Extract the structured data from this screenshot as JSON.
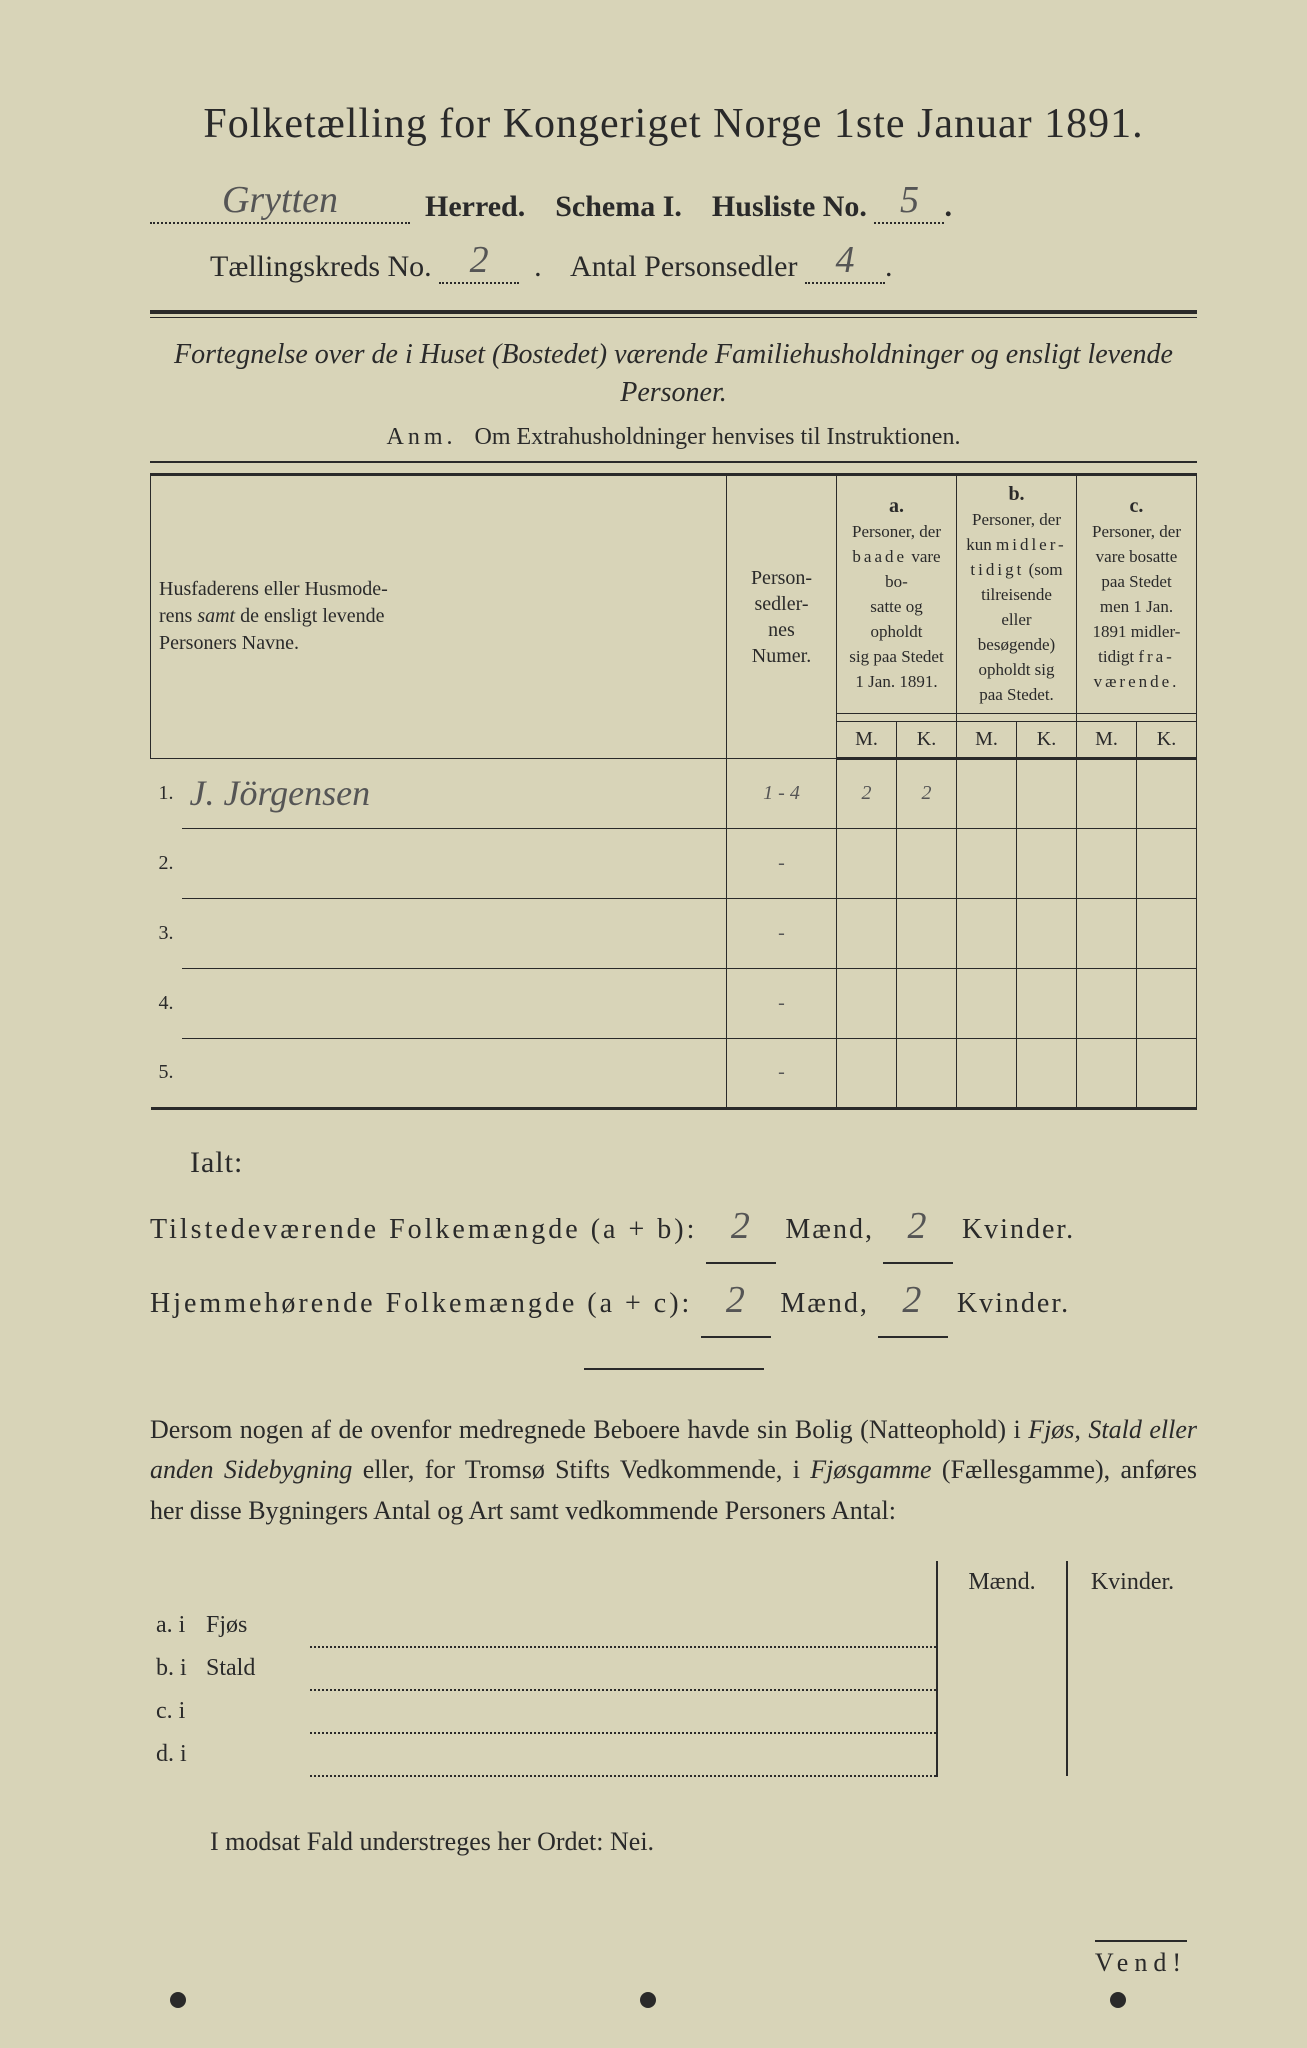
{
  "title": "Folketælling for Kongeriget Norge 1ste Januar 1891.",
  "header": {
    "herred_value": "Grytten",
    "herred_label": "Herred.",
    "schema_label": "Schema I.",
    "husliste_label": "Husliste No.",
    "husliste_value": "5",
    "kreds_label": "Tællingskreds No.",
    "kreds_value": "2",
    "antal_label": "Antal Personsedler",
    "antal_value": "4"
  },
  "subtitle": "Fortegnelse over de i Huset (Bostedet) værende Familiehusholdninger og ensligt levende Personer.",
  "anm_label": "Anm.",
  "anm_text": "Om Extrahusholdninger henvises til Instruktionen.",
  "columns": {
    "name": "Husfaderens eller Husmoderens samt de ensligt levende Personers Navne.",
    "numer": "Person-sedler-nes Numer.",
    "a_label": "a.",
    "a_text": "Personer, der baade vare bosatte og opholdt sig paa Stedet 1 Jan. 1891.",
    "b_label": "b.",
    "b_text": "Personer, der kun midlertidigt (som tilreisende eller besøgende) opholdt sig paa Stedet.",
    "c_label": "c.",
    "c_text": "Personer, der vare bosatte paa Stedet men 1 Jan. 1891 midlertidigt fraværende.",
    "m": "M.",
    "k": "K."
  },
  "rows": [
    {
      "n": "1.",
      "name": "J. Jörgensen",
      "numer": "1 - 4",
      "a_m": "2",
      "a_k": "2",
      "b_m": "",
      "b_k": "",
      "c_m": "",
      "c_k": ""
    },
    {
      "n": "2.",
      "name": "",
      "numer": "-",
      "a_m": "",
      "a_k": "",
      "b_m": "",
      "b_k": "",
      "c_m": "",
      "c_k": ""
    },
    {
      "n": "3.",
      "name": "",
      "numer": "-",
      "a_m": "",
      "a_k": "",
      "b_m": "",
      "b_k": "",
      "c_m": "",
      "c_k": ""
    },
    {
      "n": "4.",
      "name": "",
      "numer": "-",
      "a_m": "",
      "a_k": "",
      "b_m": "",
      "b_k": "",
      "c_m": "",
      "c_k": ""
    },
    {
      "n": "5.",
      "name": "",
      "numer": "-",
      "a_m": "",
      "a_k": "",
      "b_m": "",
      "b_k": "",
      "c_m": "",
      "c_k": ""
    }
  ],
  "ialt_label": "Ialt:",
  "totals": {
    "line1_a": "Tilstedeværende Folkemængde (a + b):",
    "line1_m": "2",
    "line1_mlab": "Mænd,",
    "line1_k": "2",
    "line1_klab": "Kvinder.",
    "line2_a": "Hjemmehørende Folkemængde (a + c):",
    "line2_m": "2",
    "line2_mlab": "Mænd,",
    "line2_k": "2",
    "line2_klab": "Kvinder."
  },
  "para": "Dersom nogen af de ovenfor medregnede Beboere havde sin Bolig (Natteophold) i Fjøs, Stald eller anden Sidebygning eller, for Tromsø Stifts Vedkommende, i Fjøsgamme (Fællesgamme), anføres her disse Bygningers Antal og Art samt vedkommende Personers Antal:",
  "sidetable": {
    "m": "Mænd.",
    "k": "Kvinder.",
    "a": "a.  i",
    "a_word": "Fjøs",
    "b": "b.  i",
    "b_word": "Stald",
    "c": "c.  i",
    "d": "d.  i"
  },
  "modsat": "I modsat Fald understreges her Ordet: Nei.",
  "vend": "Vend!"
}
